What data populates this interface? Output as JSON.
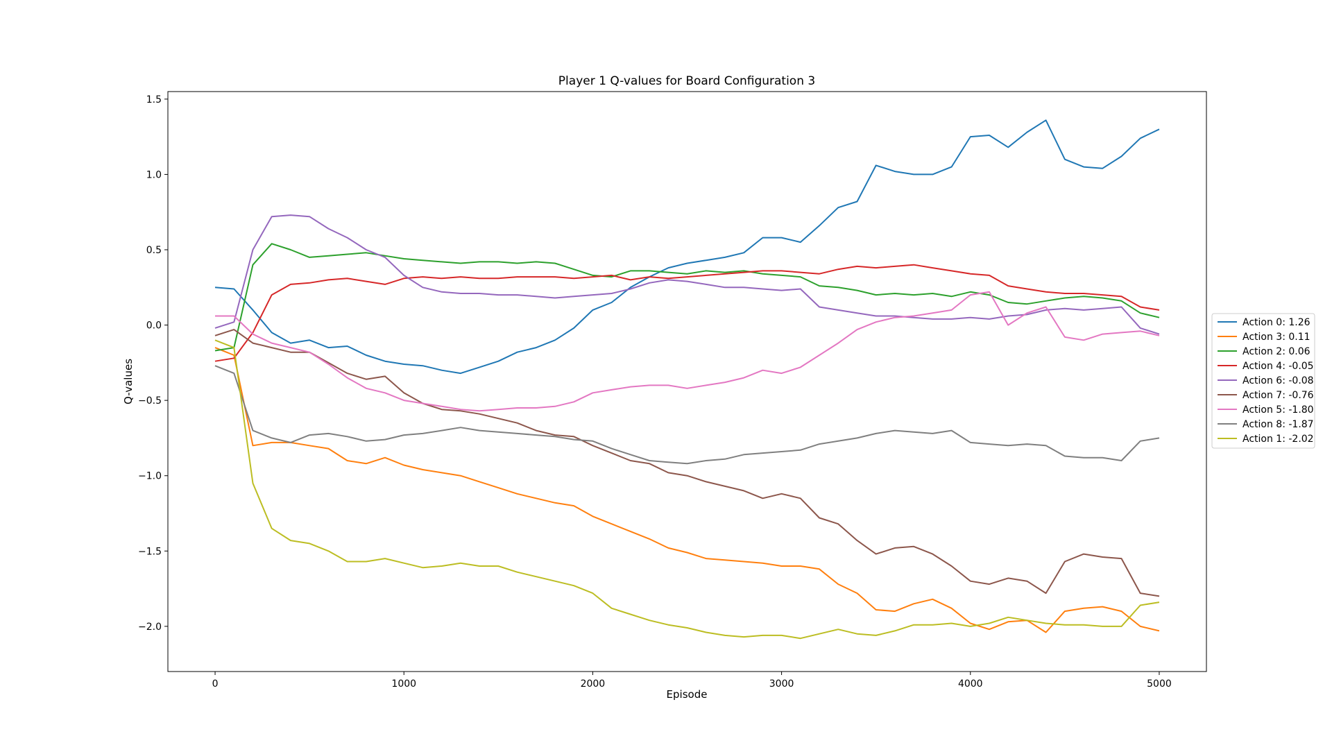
{
  "chart_data": {
    "type": "line",
    "title": "Player 1 Q-values for Board Configuration 3",
    "xlabel": "Episode",
    "ylabel": "Q-values",
    "xlim": [
      -250,
      5250
    ],
    "ylim": [
      -2.3,
      1.55
    ],
    "xticks": [
      0,
      1000,
      2000,
      3000,
      4000,
      5000
    ],
    "yticks": [
      1.5,
      1.0,
      0.5,
      0.0,
      -0.5,
      -1.0,
      -1.5,
      -2.0
    ],
    "xtick_labels": [
      "0",
      "1000",
      "2000",
      "3000",
      "4000",
      "5000"
    ],
    "ytick_labels": [
      "1.5",
      "1.0",
      "0.5",
      "0.0",
      "−0.5",
      "−1.0",
      "−1.5",
      "−2.0"
    ],
    "grid": false,
    "legend_position": "right-outside",
    "x": [
      0,
      100,
      200,
      300,
      400,
      500,
      600,
      700,
      800,
      900,
      1000,
      1100,
      1200,
      1300,
      1400,
      1500,
      1600,
      1700,
      1800,
      1900,
      2000,
      2100,
      2200,
      2300,
      2400,
      2500,
      2600,
      2700,
      2800,
      2900,
      3000,
      3100,
      3200,
      3300,
      3400,
      3500,
      3600,
      3700,
      3800,
      3900,
      4000,
      4100,
      4200,
      4300,
      4400,
      4500,
      4600,
      4700,
      4800,
      4900,
      5000
    ],
    "series": [
      {
        "name": "Action 0: 1.26",
        "color": "#1f77b4",
        "values": [
          0.25,
          0.24,
          0.1,
          -0.05,
          -0.12,
          -0.1,
          -0.15,
          -0.14,
          -0.2,
          -0.24,
          -0.26,
          -0.27,
          -0.3,
          -0.32,
          -0.28,
          -0.24,
          -0.18,
          -0.15,
          -0.1,
          -0.02,
          0.1,
          0.15,
          0.25,
          0.32,
          0.38,
          0.41,
          0.43,
          0.45,
          0.48,
          0.58,
          0.58,
          0.55,
          0.66,
          0.78,
          0.82,
          1.06,
          1.02,
          1.0,
          1.0,
          1.05,
          1.25,
          1.26,
          1.18,
          1.28,
          1.36,
          1.1,
          1.05,
          1.04,
          1.12,
          1.24,
          1.3
        ]
      },
      {
        "name": "Action 3: 0.11",
        "color": "#ff7f0e",
        "values": [
          -0.15,
          -0.2,
          -0.8,
          -0.78,
          -0.78,
          -0.8,
          -0.82,
          -0.9,
          -0.92,
          -0.88,
          -0.93,
          -0.96,
          -0.98,
          -1.0,
          -1.04,
          -1.08,
          -1.12,
          -1.15,
          -1.18,
          -1.2,
          -1.27,
          -1.32,
          -1.37,
          -1.42,
          -1.48,
          -1.51,
          -1.55,
          -1.56,
          -1.57,
          -1.58,
          -1.6,
          -1.6,
          -1.62,
          -1.72,
          -1.78,
          -1.89,
          -1.9,
          -1.85,
          -1.82,
          -1.88,
          -1.98,
          -2.02,
          -1.97,
          -1.96,
          -2.04,
          -1.9,
          -1.88,
          -1.87,
          -1.9,
          -2.0,
          -2.03
        ]
      },
      {
        "name": "Action 2: 0.06",
        "color": "#2ca02c",
        "values": [
          -0.17,
          -0.15,
          0.4,
          0.54,
          0.5,
          0.45,
          0.46,
          0.47,
          0.48,
          0.46,
          0.44,
          0.43,
          0.42,
          0.41,
          0.42,
          0.42,
          0.41,
          0.42,
          0.41,
          0.37,
          0.33,
          0.32,
          0.36,
          0.36,
          0.35,
          0.34,
          0.36,
          0.35,
          0.36,
          0.34,
          0.33,
          0.32,
          0.26,
          0.25,
          0.23,
          0.2,
          0.21,
          0.2,
          0.21,
          0.19,
          0.22,
          0.2,
          0.15,
          0.14,
          0.16,
          0.18,
          0.19,
          0.18,
          0.16,
          0.08,
          0.05
        ]
      },
      {
        "name": "Action 4: -0.05",
        "color": "#d62728",
        "values": [
          -0.24,
          -0.22,
          -0.05,
          0.2,
          0.27,
          0.28,
          0.3,
          0.31,
          0.29,
          0.27,
          0.31,
          0.32,
          0.31,
          0.32,
          0.31,
          0.31,
          0.32,
          0.32,
          0.32,
          0.31,
          0.32,
          0.33,
          0.3,
          0.32,
          0.31,
          0.32,
          0.33,
          0.34,
          0.35,
          0.36,
          0.36,
          0.35,
          0.34,
          0.37,
          0.39,
          0.38,
          0.39,
          0.4,
          0.38,
          0.36,
          0.34,
          0.33,
          0.26,
          0.24,
          0.22,
          0.21,
          0.21,
          0.2,
          0.19,
          0.12,
          0.1
        ]
      },
      {
        "name": "Action 6: -0.08",
        "color": "#9467bd",
        "values": [
          -0.02,
          0.02,
          0.5,
          0.72,
          0.73,
          0.72,
          0.64,
          0.58,
          0.5,
          0.45,
          0.33,
          0.25,
          0.22,
          0.21,
          0.21,
          0.2,
          0.2,
          0.19,
          0.18,
          0.19,
          0.2,
          0.21,
          0.24,
          0.28,
          0.3,
          0.29,
          0.27,
          0.25,
          0.25,
          0.24,
          0.23,
          0.24,
          0.12,
          0.1,
          0.08,
          0.06,
          0.06,
          0.05,
          0.04,
          0.04,
          0.05,
          0.04,
          0.06,
          0.07,
          0.1,
          0.11,
          0.1,
          0.11,
          0.12,
          -0.02,
          -0.06
        ]
      },
      {
        "name": "Action 7: -0.76",
        "color": "#8c564b",
        "values": [
          -0.07,
          -0.03,
          -0.12,
          -0.15,
          -0.18,
          -0.18,
          -0.25,
          -0.32,
          -0.36,
          -0.34,
          -0.45,
          -0.52,
          -0.56,
          -0.57,
          -0.59,
          -0.62,
          -0.65,
          -0.7,
          -0.73,
          -0.74,
          -0.8,
          -0.85,
          -0.9,
          -0.92,
          -0.98,
          -1.0,
          -1.04,
          -1.07,
          -1.1,
          -1.15,
          -1.12,
          -1.15,
          -1.28,
          -1.32,
          -1.43,
          -1.52,
          -1.48,
          -1.47,
          -1.52,
          -1.6,
          -1.7,
          -1.72,
          -1.68,
          -1.7,
          -1.78,
          -1.57,
          -1.52,
          -1.54,
          -1.55,
          -1.78,
          -1.8
        ]
      },
      {
        "name": "Action 5: -1.80",
        "color": "#e377c2",
        "values": [
          0.06,
          0.06,
          -0.06,
          -0.12,
          -0.15,
          -0.18,
          -0.26,
          -0.35,
          -0.42,
          -0.45,
          -0.5,
          -0.52,
          -0.54,
          -0.56,
          -0.57,
          -0.56,
          -0.55,
          -0.55,
          -0.54,
          -0.51,
          -0.45,
          -0.43,
          -0.41,
          -0.4,
          -0.4,
          -0.42,
          -0.4,
          -0.38,
          -0.35,
          -0.3,
          -0.32,
          -0.28,
          -0.2,
          -0.12,
          -0.03,
          0.02,
          0.05,
          0.06,
          0.08,
          0.1,
          0.2,
          0.22,
          0.0,
          0.08,
          0.12,
          -0.08,
          -0.1,
          -0.06,
          -0.05,
          -0.04,
          -0.07
        ]
      },
      {
        "name": "Action 8: -1.87",
        "color": "#7f7f7f",
        "values": [
          -0.27,
          -0.32,
          -0.7,
          -0.75,
          -0.78,
          -0.73,
          -0.72,
          -0.74,
          -0.77,
          -0.76,
          -0.73,
          -0.72,
          -0.7,
          -0.68,
          -0.7,
          -0.71,
          -0.72,
          -0.73,
          -0.74,
          -0.76,
          -0.77,
          -0.82,
          -0.86,
          -0.9,
          -0.91,
          -0.92,
          -0.9,
          -0.89,
          -0.86,
          -0.85,
          -0.84,
          -0.83,
          -0.79,
          -0.77,
          -0.75,
          -0.72,
          -0.7,
          -0.71,
          -0.72,
          -0.7,
          -0.78,
          -0.79,
          -0.8,
          -0.79,
          -0.8,
          -0.87,
          -0.88,
          -0.88,
          -0.9,
          -0.77,
          -0.75
        ]
      },
      {
        "name": "Action 1: -2.02",
        "color": "#bcbd22",
        "values": [
          -0.1,
          -0.15,
          -1.05,
          -1.35,
          -1.43,
          -1.45,
          -1.5,
          -1.57,
          -1.57,
          -1.55,
          -1.58,
          -1.61,
          -1.6,
          -1.58,
          -1.6,
          -1.6,
          -1.64,
          -1.67,
          -1.7,
          -1.73,
          -1.78,
          -1.88,
          -1.92,
          -1.96,
          -1.99,
          -2.01,
          -2.04,
          -2.06,
          -2.07,
          -2.06,
          -2.06,
          -2.08,
          -2.05,
          -2.02,
          -2.05,
          -2.06,
          -2.03,
          -1.99,
          -1.99,
          -1.98,
          -2.0,
          -1.98,
          -1.94,
          -1.96,
          -1.98,
          -1.99,
          -1.99,
          -2.0,
          -2.0,
          -1.86,
          -1.84
        ]
      }
    ]
  }
}
